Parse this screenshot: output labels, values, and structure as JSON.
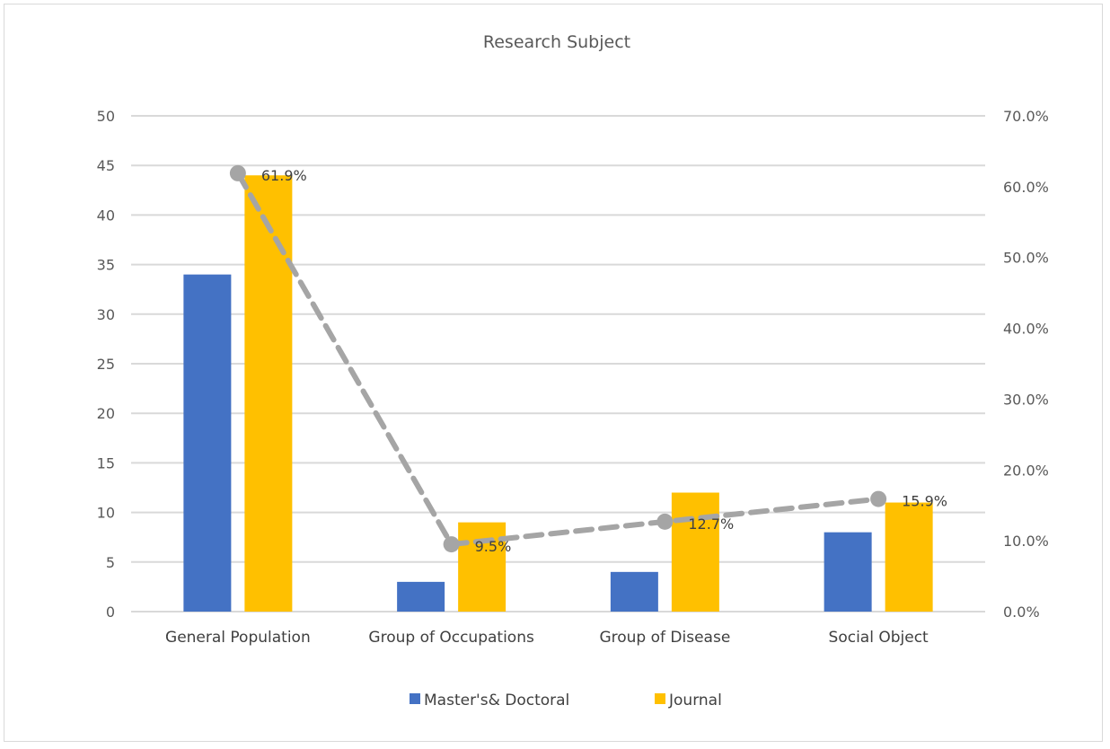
{
  "chart_data": {
    "type": "bar",
    "title": "Research Subject",
    "categories": [
      "General Population",
      "Group of Occupations",
      "Group of Disease",
      "Social Object"
    ],
    "series": [
      {
        "name": "Master's& Doctoral",
        "type": "bar",
        "axis": "left",
        "color": "#4472c4",
        "values": [
          34,
          3,
          4,
          8
        ]
      },
      {
        "name": "Journal",
        "type": "bar",
        "axis": "left",
        "color": "#ffc000",
        "values": [
          44,
          9,
          12,
          11
        ]
      },
      {
        "type": "line",
        "axis": "right",
        "style": "dashed",
        "color": "#a5a5a5",
        "values": [
          61.9,
          9.5,
          12.7,
          15.9
        ],
        "data_labels": [
          "61.9%",
          "9.5%",
          "12.7%",
          "15.9%"
        ]
      }
    ],
    "y_left": {
      "ylim": [
        0,
        50
      ],
      "ticks": [
        "0",
        "5",
        "10",
        "15",
        "20",
        "25",
        "30",
        "35",
        "40",
        "45",
        "50"
      ]
    },
    "y_right": {
      "ylim": [
        0,
        70
      ],
      "ticks": [
        "0.0%",
        "10.0%",
        "20.0%",
        "30.0%",
        "40.0%",
        "50.0%",
        "60.0%",
        "70.0%"
      ]
    },
    "legend": {
      "position": "bottom",
      "entries": [
        "Master's& Doctoral",
        "Journal"
      ]
    },
    "grid": true
  }
}
